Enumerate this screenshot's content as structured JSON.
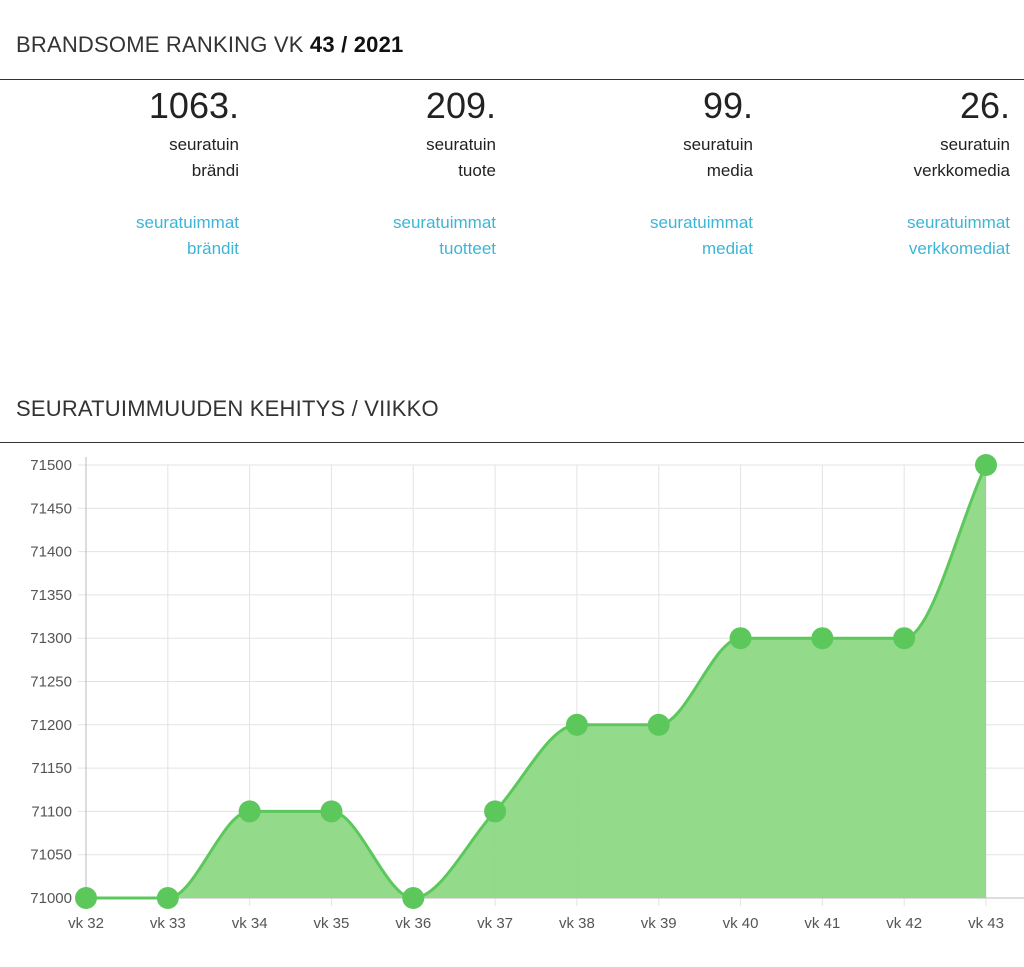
{
  "header": {
    "title_prefix": "BRANDSOME RANKING VK ",
    "title_bold": "43 / 2021"
  },
  "stats": [
    {
      "rank": "1063.",
      "line1": "seuratuin",
      "line2": "brändi",
      "link1": "seuratuimmat",
      "link2": "brändit"
    },
    {
      "rank": "209.",
      "line1": "seuratuin",
      "line2": "tuote",
      "link1": "seuratuimmat",
      "link2": "tuotteet"
    },
    {
      "rank": "99.",
      "line1": "seuratuin",
      "line2": "media",
      "link1": "seuratuimmat",
      "link2": "mediat"
    },
    {
      "rank": "26.",
      "line1": "seuratuin",
      "line2": "verkkomedia",
      "link1": "seuratuimmat",
      "link2": "verkkomediat"
    }
  ],
  "section2": {
    "title": "SEURATUIMMUUDEN KEHITYS / VIIKKO"
  },
  "colors": {
    "line": "#5cc85c",
    "fill": "#8dd884",
    "point": "#5cc85c",
    "link": "#3db5d6",
    "grid": "#e3e3e3"
  },
  "chart_data": {
    "type": "area",
    "title": "",
    "xlabel": "",
    "ylabel": "",
    "categories": [
      "vk 32",
      "vk 33",
      "vk 34",
      "vk 35",
      "vk 36",
      "vk 37",
      "vk 38",
      "vk 39",
      "vk 40",
      "vk 41",
      "vk 42",
      "vk 43"
    ],
    "values": [
      71000,
      71000,
      71100,
      71100,
      71000,
      71100,
      71200,
      71200,
      71300,
      71300,
      71300,
      71500
    ],
    "ylim": [
      71000,
      71500
    ],
    "yticks": [
      71500,
      71450,
      71400,
      71350,
      71300,
      71250,
      71200,
      71150,
      71100,
      71050,
      71000
    ],
    "grid": true,
    "legend": "none"
  }
}
